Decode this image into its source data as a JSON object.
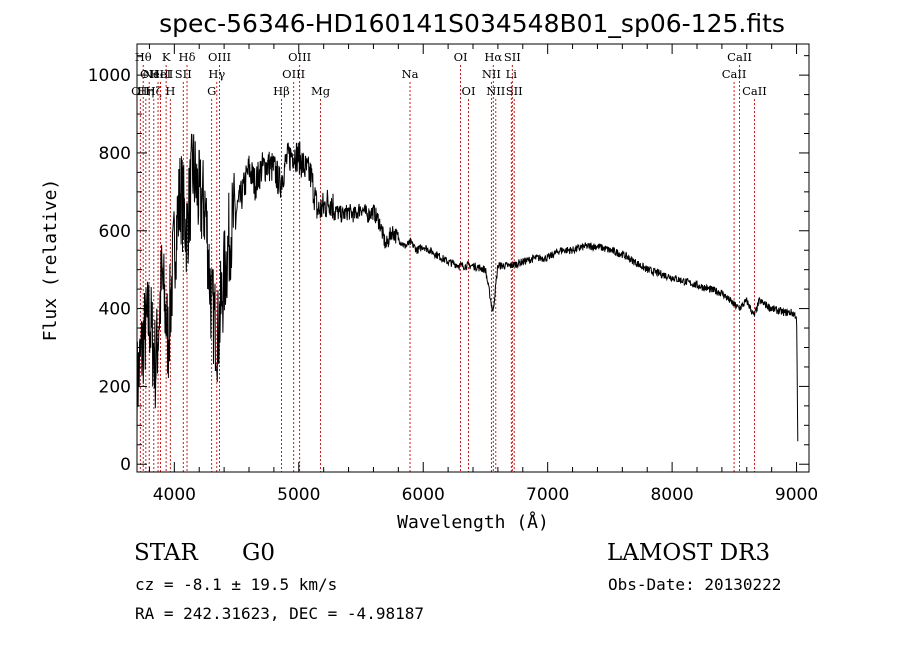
{
  "title": "spec-56346-HD160141S034548B01_sp06-125.fits",
  "footer": {
    "object_class": "STAR",
    "subclass": "G0",
    "redshift": "cz = -8.1 ± 19.5 km/s",
    "coords": "RA = 242.31623, DEC =  -4.98187",
    "survey": "LAMOST DR3",
    "obs_date": "Obs-Date: 20130222"
  },
  "chart_data": {
    "type": "line",
    "title": "spec-56346-HD160141S034548B01_sp06-125.fits",
    "xlabel": "Wavelength (Å)",
    "ylabel": "Flux (relative)",
    "xlim": [
      3700,
      9100
    ],
    "ylim": [
      -20,
      1080
    ],
    "xticks": [
      4000,
      5000,
      6000,
      7000,
      8000,
      9000
    ],
    "yticks": [
      0,
      200,
      400,
      600,
      800,
      1000
    ],
    "grid": false,
    "line_color": "#000000",
    "marker_color": "#cc0000",
    "spectrum": {
      "x": [
        3700,
        3750,
        3800,
        3850,
        3900,
        3950,
        4000,
        4050,
        4100,
        4150,
        4200,
        4250,
        4300,
        4350,
        4400,
        4450,
        4500,
        4550,
        4600,
        4650,
        4700,
        4750,
        4800,
        4850,
        4900,
        4950,
        5000,
        5050,
        5100,
        5150,
        5200,
        5250,
        5300,
        5350,
        5400,
        5450,
        5500,
        5550,
        5600,
        5650,
        5700,
        5750,
        5800,
        5850,
        5900,
        5950,
        6000,
        6100,
        6200,
        6300,
        6400,
        6500,
        6560,
        6600,
        6700,
        6800,
        6900,
        7000,
        7100,
        7200,
        7300,
        7400,
        7500,
        7600,
        7700,
        7800,
        7900,
        8000,
        8100,
        8200,
        8300,
        8400,
        8500,
        8540,
        8600,
        8660,
        8700,
        8800,
        8900,
        8960,
        9000,
        9010
      ],
      "y": [
        200,
        320,
        380,
        250,
        480,
        320,
        560,
        700,
        600,
        760,
        680,
        660,
        400,
        330,
        480,
        600,
        650,
        700,
        760,
        720,
        760,
        770,
        760,
        720,
        780,
        800,
        790,
        760,
        740,
        650,
        660,
        680,
        650,
        640,
        650,
        640,
        660,
        640,
        650,
        620,
        560,
        600,
        580,
        560,
        570,
        550,
        560,
        540,
        520,
        510,
        510,
        500,
        390,
        510,
        510,
        520,
        530,
        530,
        550,
        550,
        560,
        560,
        550,
        540,
        520,
        500,
        490,
        480,
        470,
        460,
        450,
        440,
        410,
        400,
        420,
        380,
        420,
        400,
        390,
        390,
        380,
        60
      ],
      "noise": 40
    },
    "line_markers": [
      {
        "wavelength": 3727,
        "label": "OII",
        "row": 2
      },
      {
        "wavelength": 3750,
        "label": "Hθ",
        "row": 0
      },
      {
        "wavelength": 3771,
        "label": "Hη",
        "row": 2
      },
      {
        "wavelength": 3798,
        "label": "OII",
        "row": 1
      },
      {
        "wavelength": 3835,
        "label": "Hζ",
        "row": 2
      },
      {
        "wavelength": 3869,
        "label": "NeIII",
        "row": 1
      },
      {
        "wavelength": 3889,
        "label": "HeI",
        "row": 1
      },
      {
        "wavelength": 3934,
        "label": "K",
        "row": 0
      },
      {
        "wavelength": 3968,
        "label": "H",
        "row": 2
      },
      {
        "wavelength": 4072,
        "label": "SII",
        "row": 1
      },
      {
        "wavelength": 4102,
        "label": "Hδ",
        "row": 0
      },
      {
        "wavelength": 4300,
        "label": "G",
        "row": 2
      },
      {
        "wavelength": 4341,
        "label": "Hγ",
        "row": 1
      },
      {
        "wavelength": 4363,
        "label": "OIII",
        "row": 0
      },
      {
        "wavelength": 4861,
        "label": "Hβ",
        "row": 2
      },
      {
        "wavelength": 4959,
        "label": "OIII",
        "row": 1
      },
      {
        "wavelength": 5007,
        "label": "OIII",
        "row": 0
      },
      {
        "wavelength": 5175,
        "label": "Mg",
        "row": 2
      },
      {
        "wavelength": 5894,
        "label": "Na",
        "row": 1
      },
      {
        "wavelength": 6300,
        "label": "OI",
        "row": 0
      },
      {
        "wavelength": 6364,
        "label": "OI",
        "row": 2
      },
      {
        "wavelength": 6548,
        "label": "NII",
        "row": 1
      },
      {
        "wavelength": 6563,
        "label": "Hα",
        "row": 0
      },
      {
        "wavelength": 6583,
        "label": "NII",
        "row": 2
      },
      {
        "wavelength": 6708,
        "label": "Li",
        "row": 1
      },
      {
        "wavelength": 6716,
        "label": "SII",
        "row": 0
      },
      {
        "wavelength": 6731,
        "label": "SII",
        "row": 2
      },
      {
        "wavelength": 8498,
        "label": "CaII",
        "row": 1
      },
      {
        "wavelength": 8542,
        "label": "CaII",
        "row": 0
      },
      {
        "wavelength": 8662,
        "label": "CaII",
        "row": 2
      }
    ]
  }
}
